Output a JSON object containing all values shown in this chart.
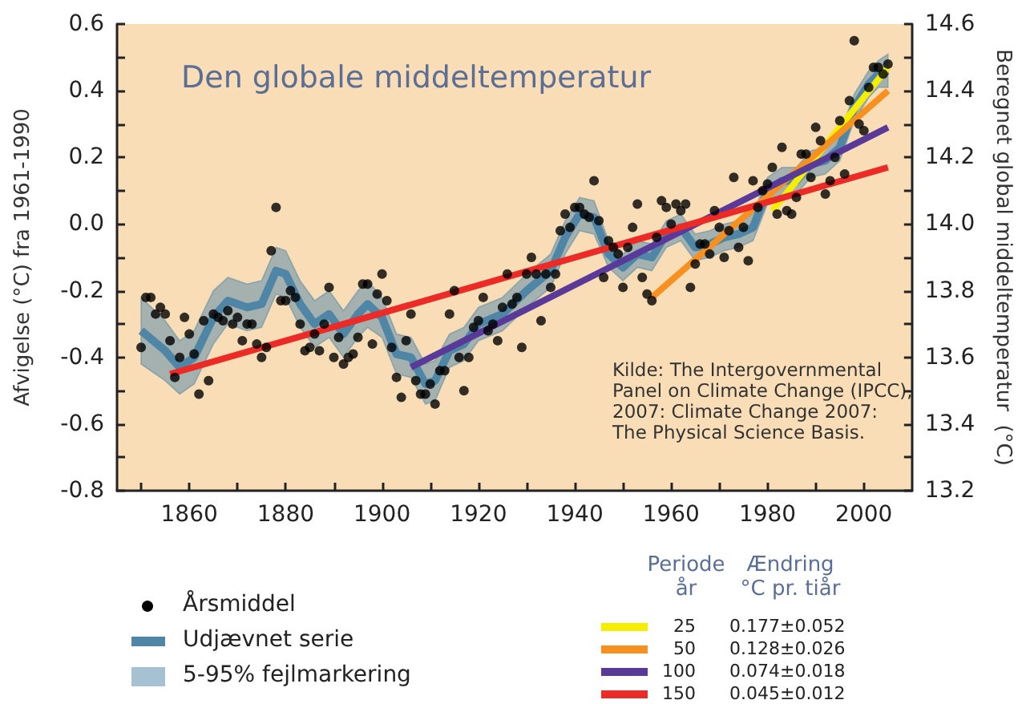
{
  "chart_data": {
    "type": "scatter",
    "title": "Den globale middeltemperatur",
    "ylabel": "Afvigelse (°C) fra 1961-1990",
    "y2label": "Beregnet global middeltemperatur  (°C)",
    "annotations": [
      "Kilde: The Intergovernmental\nPanel on Climate Change (IPCC),\n2007: Climate Change 2007:\nThe Physical Science Basis.",
      "5-95% fejlmarkering",
      "Periode\når",
      "Ændring\n°C pr. tiår",
      "0.177±0.052",
      "0.128±0.026",
      "0.074±0.018",
      "0.045±0.012"
    ],
    "xlim": [
      1845,
      2010
    ],
    "xticks": [
      {
        "value": 1850,
        "label": null
      },
      1860,
      {
        "value": 1870,
        "label": null
      },
      1880,
      {
        "value": 1890,
        "label": null
      },
      1900,
      {
        "value": 1910,
        "label": null
      },
      1920,
      {
        "value": 1930,
        "label": null
      },
      1940,
      {
        "value": 1950,
        "label": null
      },
      1960,
      {
        "value": 1970,
        "label": null
      },
      1980,
      {
        "value": 1990,
        "label": null
      },
      2000
    ],
    "ylim": [
      -0.8,
      0.6
    ],
    "yticks": [
      -0.8,
      {
        "value": -0.7,
        "label": null
      },
      -0.6,
      {
        "value": -0.5,
        "label": null
      },
      -0.4,
      {
        "value": -0.3,
        "label": null
      },
      -0.2,
      {
        "value": -0.1,
        "label": null
      },
      {
        "value": 0,
        "label": "0.0"
      },
      {
        "value": 0.1,
        "label": null
      },
      0.2,
      {
        "value": 0.3,
        "label": null
      },
      0.4,
      {
        "value": 0.5,
        "label": null
      },
      0.6
    ],
    "y2lim": [
      13.2,
      14.6
    ],
    "y2ticks": [
      13.2,
      {
        "value": 13.3,
        "label": null
      },
      13.4,
      {
        "value": 13.5,
        "label": null
      },
      13.6,
      {
        "value": 13.7,
        "label": null
      },
      13.8,
      {
        "value": 13.9,
        "label": null
      },
      {
        "value": 14,
        "label": "14.0"
      },
      {
        "value": 14.1,
        "label": null
      },
      14.2,
      {
        "value": 14.3,
        "label": null
      },
      14.4,
      {
        "value": 14.5,
        "label": null
      },
      14.6
    ],
    "grid": false,
    "legend": "bottom",
    "series": [
      {
        "name": "Årsmiddel",
        "marker": "circle",
        "color": "#000000",
        "x": [
          1850,
          1851,
          1852,
          1853,
          1854,
          1855,
          1856,
          1857,
          1858,
          1859,
          1860,
          1861,
          1862,
          1863,
          1864,
          1865,
          1866,
          1867,
          1868,
          1869,
          1870,
          1871,
          1872,
          1873,
          1874,
          1875,
          1876,
          1877,
          1878,
          1879,
          1880,
          1881,
          1882,
          1883,
          1884,
          1885,
          1886,
          1887,
          1888,
          1889,
          1890,
          1891,
          1892,
          1893,
          1894,
          1895,
          1896,
          1897,
          1898,
          1899,
          1900,
          1901,
          1902,
          1903,
          1904,
          1905,
          1906,
          1907,
          1908,
          1909,
          1910,
          1911,
          1912,
          1913,
          1914,
          1915,
          1916,
          1917,
          1918,
          1919,
          1920,
          1921,
          1922,
          1923,
          1924,
          1925,
          1926,
          1927,
          1928,
          1929,
          1930,
          1931,
          1932,
          1933,
          1934,
          1935,
          1936,
          1937,
          1938,
          1939,
          1940,
          1941,
          1942,
          1943,
          1944,
          1945,
          1946,
          1947,
          1948,
          1949,
          1950,
          1951,
          1952,
          1953,
          1954,
          1955,
          1956,
          1957,
          1958,
          1959,
          1960,
          1961,
          1962,
          1963,
          1964,
          1965,
          1966,
          1967,
          1968,
          1969,
          1970,
          1971,
          1972,
          1973,
          1974,
          1975,
          1976,
          1977,
          1978,
          1979,
          1980,
          1981,
          1982,
          1983,
          1984,
          1985,
          1986,
          1987,
          1988,
          1989,
          1990,
          1991,
          1992,
          1993,
          1994,
          1995,
          1996,
          1997,
          1998,
          1999,
          2000,
          2001,
          2002,
          2003,
          2004,
          2005
        ],
        "values": [
          -0.37,
          -0.22,
          -0.22,
          -0.27,
          -0.25,
          -0.27,
          -0.35,
          -0.46,
          -0.4,
          -0.28,
          -0.33,
          -0.39,
          -0.51,
          -0.29,
          -0.47,
          -0.27,
          -0.28,
          -0.29,
          -0.26,
          -0.3,
          -0.28,
          -0.35,
          -0.3,
          -0.3,
          -0.36,
          -0.4,
          -0.37,
          -0.08,
          0.05,
          -0.23,
          -0.23,
          -0.2,
          -0.22,
          -0.3,
          -0.38,
          -0.37,
          -0.33,
          -0.38,
          -0.3,
          -0.19,
          -0.4,
          -0.34,
          -0.42,
          -0.4,
          -0.39,
          -0.34,
          -0.18,
          -0.18,
          -0.36,
          -0.21,
          -0.15,
          -0.23,
          -0.37,
          -0.46,
          -0.52,
          -0.35,
          -0.27,
          -0.47,
          -0.51,
          -0.51,
          -0.48,
          -0.54,
          -0.44,
          -0.44,
          -0.27,
          -0.2,
          -0.4,
          -0.5,
          -0.4,
          -0.31,
          -0.29,
          -0.22,
          -0.32,
          -0.3,
          -0.35,
          -0.25,
          -0.15,
          -0.24,
          -0.22,
          -0.37,
          -0.15,
          -0.1,
          -0.15,
          -0.29,
          -0.15,
          -0.19,
          -0.15,
          -0.02,
          0.03,
          -0.01,
          0.05,
          0.05,
          0.03,
          0.02,
          0.13,
          0.01,
          -0.16,
          -0.05,
          -0.07,
          -0.09,
          -0.19,
          -0.07,
          -0.01,
          0.06,
          -0.16,
          -0.21,
          -0.23,
          -0.04,
          0.07,
          0.05,
          0,
          0.06,
          0.04,
          0.06,
          -0.19,
          -0.12,
          -0.06,
          -0.06,
          -0.09,
          0.04,
          -0.01,
          -0.1,
          -0.02,
          0.14,
          -0.07,
          -0.01,
          -0.11,
          0.13,
          0.05,
          0.1,
          0.12,
          0.17,
          0.03,
          0.23,
          0.04,
          0.03,
          0.08,
          0.21,
          0.21,
          0.14,
          0.29,
          0.25,
          0.09,
          0.13,
          0.2,
          0.31,
          0.15,
          0.37,
          0.55,
          0.3,
          0.28,
          0.41,
          0.47,
          0.47,
          0.45,
          0.48
        ]
      },
      {
        "type": "line",
        "name": "Udjævnet serie",
        "marker": "none",
        "color": "#4f86a6",
        "x": [
          1850,
          1855,
          1858,
          1861,
          1865,
          1868,
          1872,
          1875,
          1878,
          1880,
          1883,
          1886,
          1889,
          1892,
          1895,
          1897,
          1900,
          1903,
          1906,
          1909,
          1911,
          1914,
          1917,
          1920,
          1925,
          1930,
          1935,
          1938,
          1941,
          1944,
          1947,
          1950,
          1953,
          1956,
          1959,
          1962,
          1965,
          1968,
          1971,
          1974,
          1977,
          1980,
          1983,
          1986,
          1989,
          1992,
          1995,
          1998,
          2001,
          2003,
          2005
        ],
        "values": [
          -0.32,
          -0.38,
          -0.43,
          -0.4,
          -0.28,
          -0.23,
          -0.25,
          -0.24,
          -0.14,
          -0.15,
          -0.24,
          -0.3,
          -0.27,
          -0.33,
          -0.27,
          -0.24,
          -0.28,
          -0.39,
          -0.4,
          -0.48,
          -0.47,
          -0.38,
          -0.36,
          -0.3,
          -0.27,
          -0.2,
          -0.14,
          -0.04,
          0.03,
          0.02,
          -0.09,
          -0.13,
          -0.09,
          -0.1,
          -0.03,
          -0.01,
          -0.07,
          -0.06,
          -0.04,
          -0.03,
          -0.01,
          0.1,
          0.13,
          0.13,
          0.18,
          0.19,
          0.23,
          0.35,
          0.42,
          0.45,
          0.46
        ],
        "upper": [
          -0.22,
          -0.29,
          -0.35,
          -0.32,
          -0.2,
          -0.16,
          -0.18,
          -0.17,
          -0.07,
          -0.08,
          -0.17,
          -0.23,
          -0.2,
          -0.26,
          -0.2,
          -0.17,
          -0.22,
          -0.33,
          -0.34,
          -0.42,
          -0.41,
          -0.33,
          -0.31,
          -0.25,
          -0.22,
          -0.15,
          -0.09,
          0.01,
          0.08,
          0.07,
          -0.05,
          -0.09,
          -0.05,
          -0.06,
          0.01,
          0.03,
          -0.03,
          -0.02,
          0,
          0.01,
          0.03,
          0.14,
          0.17,
          0.17,
          0.22,
          0.23,
          0.27,
          0.39,
          0.46,
          0.49,
          0.51
        ],
        "lower": [
          -0.42,
          -0.47,
          -0.51,
          -0.48,
          -0.36,
          -0.3,
          -0.32,
          -0.31,
          -0.21,
          -0.22,
          -0.31,
          -0.37,
          -0.34,
          -0.4,
          -0.34,
          -0.31,
          -0.34,
          -0.45,
          -0.46,
          -0.54,
          -0.53,
          -0.43,
          -0.41,
          -0.35,
          -0.32,
          -0.25,
          -0.19,
          -0.09,
          -0.02,
          -0.03,
          -0.13,
          -0.17,
          -0.13,
          -0.14,
          -0.07,
          -0.05,
          -0.11,
          -0.1,
          -0.08,
          -0.07,
          -0.05,
          0.06,
          0.09,
          0.09,
          0.14,
          0.15,
          0.19,
          0.31,
          0.38,
          0.41,
          0.41
        ]
      },
      {
        "type": "line",
        "name": "25",
        "marker": "none",
        "color": "#f5ee00",
        "x": [
          1981,
          2005
        ],
        "values": [
          0.04,
          0.47
        ]
      },
      {
        "type": "line",
        "name": "50",
        "marker": "none",
        "color": "#f7901e",
        "x": [
          1956,
          2005
        ],
        "values": [
          -0.22,
          0.4
        ]
      },
      {
        "type": "line",
        "name": "100",
        "marker": "none",
        "color": "#5a3a98",
        "x": [
          1906,
          2005
        ],
        "values": [
          -0.43,
          0.29
        ]
      },
      {
        "type": "line",
        "name": "150",
        "marker": "none",
        "color": "#ec2a26",
        "x": [
          1856,
          2005
        ],
        "values": [
          -0.45,
          0.17
        ]
      }
    ]
  }
}
